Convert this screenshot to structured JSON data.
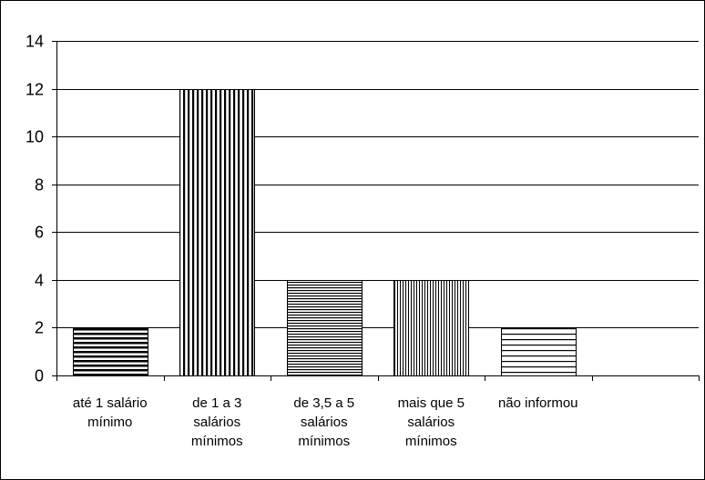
{
  "chart_data": {
    "type": "bar",
    "title": "",
    "xlabel": "",
    "ylabel": "",
    "categories": [
      [
        "até 1 salário",
        "mínimo"
      ],
      [
        "de 1 a 3",
        "salários",
        "mínimos"
      ],
      [
        "de 3,5 a 5",
        "salários",
        "mínimos"
      ],
      [
        "mais que 5",
        "salários",
        "mínimos"
      ],
      [
        "não informou"
      ]
    ],
    "values": [
      2,
      12,
      4,
      4,
      2
    ],
    "patterns": [
      "horizontal-dense",
      "vertical-wide",
      "horizontal-fine",
      "vertical-fine",
      "horizontal-wide"
    ],
    "ylim": [
      0,
      14
    ],
    "yticks": [
      0,
      2,
      4,
      6,
      8,
      10,
      12,
      14
    ],
    "grid": true,
    "legend": "none",
    "colors": {
      "bar_stroke": "#000000",
      "bar_fill": "#ffffff",
      "grid": "#000000"
    }
  }
}
